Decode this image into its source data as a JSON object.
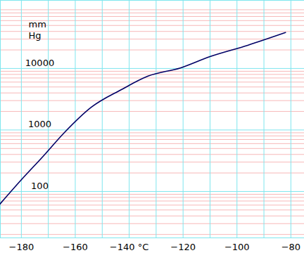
{
  "chart_data": {
    "type": "line",
    "y_label": "mm Hg",
    "log": "y",
    "grid": true,
    "color": "#000066",
    "x": [
      -188,
      -180,
      -172,
      -164,
      -154,
      -143,
      -133,
      -121,
      -110,
      -96,
      -82
    ],
    "values": [
      62,
      155,
      370,
      910,
      2350,
      4500,
      7500,
      10200,
      15600,
      23800,
      38300
    ],
    "xlim": [
      -187.8,
      -75
    ],
    "xticks": [
      {
        "value": -180,
        "label": "−180"
      },
      {
        "value": -160,
        "label": "−160"
      },
      {
        "value": -140,
        "label": "−140 °C"
      },
      {
        "value": -120,
        "label": "−120"
      },
      {
        "value": -100,
        "label": "−100"
      },
      {
        "value": -80,
        "label": "−80"
      }
    ],
    "ylim": [
      17.6,
      128000
    ],
    "yticks": [
      100,
      1000,
      10000
    ]
  }
}
